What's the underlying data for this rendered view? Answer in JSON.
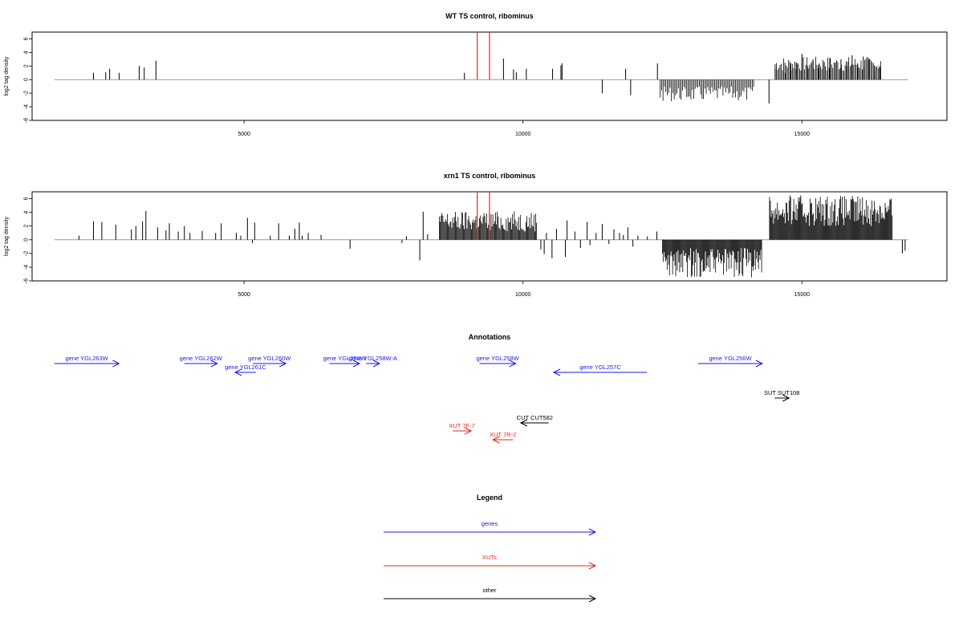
{
  "chart_data": [
    {
      "type": "bar",
      "title": "WT TS control, ribominus",
      "ylabel": "log2 tag density",
      "xlim": [
        1200,
        17600
      ],
      "ylim": [
        -6,
        7
      ],
      "x_ticks": [
        5000,
        10000,
        15000
      ],
      "y_ticks": [
        -6,
        -4,
        -2,
        0,
        2,
        4,
        6
      ],
      "baseline_range": [
        1600,
        16900
      ],
      "series": [
        {
          "color": "#000000",
          "x": [
            2300,
            2520,
            2590,
            2760,
            3120,
            3210,
            3420,
            8950,
            9650,
            9830,
            9880,
            10060,
            10530,
            10680,
            10700,
            11420,
            11840,
            11930,
            12410,
            14410,
            14520,
            14700,
            14800,
            14900,
            15000,
            15100,
            15200,
            15300,
            15400,
            15500,
            15600,
            15700,
            15800,
            15900,
            16000,
            16100,
            16200,
            16300,
            16400
          ],
          "values": [
            1.0,
            1.1,
            1.6,
            1.0,
            2.0,
            1.8,
            2.8,
            1.0,
            3.1,
            1.5,
            1.1,
            1.6,
            1.6,
            2.1,
            2.4,
            -2.0,
            1.6,
            -2.3,
            2.4,
            -3.5,
            1.6,
            1.0,
            2.4,
            2.5,
            3.8,
            2.0,
            3.0,
            2.2,
            2.6,
            3.2,
            2.5,
            3.0,
            2.0,
            3.6,
            2.4,
            3.4,
            2.9,
            2.1,
            1.8
          ]
        },
        {
          "color": "#e8251b",
          "x": [
            9180,
            9400
          ],
          "values": [
            6.9,
            6.9
          ]
        }
      ],
      "dense_regions": [
        {
          "x_range": [
            14520,
            16420
          ],
          "step": 22,
          "min": 1.2,
          "max": 3.4,
          "sign": 1
        },
        {
          "x_range": [
            12460,
            14140
          ],
          "step": 25,
          "min": 1.0,
          "max": 3.2,
          "sign": -1
        }
      ]
    },
    {
      "type": "bar",
      "title": "xrn1 TS control, ribominus",
      "ylabel": "log2 tag density",
      "xlim": [
        1200,
        17600
      ],
      "ylim": [
        -6,
        7
      ],
      "x_ticks": [
        5000,
        10000,
        15000
      ],
      "y_ticks": [
        -6,
        -4,
        -2,
        0,
        2,
        4,
        6
      ],
      "baseline_range": [
        1600,
        16900
      ],
      "series": [
        {
          "color": "#000000",
          "x": [
            2040,
            2300,
            2450,
            2700,
            2980,
            3060,
            3180,
            3240,
            3450,
            3600,
            3660,
            3820,
            3930,
            4030,
            4250,
            4490,
            4590,
            4860,
            4940,
            5060,
            5150,
            5190,
            5470,
            5620,
            5810,
            5910,
            5990,
            6040,
            6150,
            6380,
            6900,
            7830,
            7910,
            8150,
            8210,
            8290,
            10320,
            10380,
            10420,
            10520,
            10600,
            10760,
            10790,
            10930,
            11030,
            11150,
            11200,
            11310,
            11420,
            11540,
            11630,
            11730,
            11800,
            11880,
            11970,
            12060,
            12230,
            12400,
            16800,
            16850
          ],
          "values": [
            0.6,
            2.7,
            2.6,
            2.2,
            1.5,
            2.0,
            2.7,
            4.2,
            1.8,
            1.4,
            2.4,
            1.2,
            2.0,
            1.0,
            1.3,
            1.0,
            2.4,
            1.0,
            0.6,
            3.2,
            -0.5,
            2.5,
            0.6,
            2.4,
            0.6,
            1.6,
            2.5,
            0.6,
            1.0,
            0.7,
            -1.3,
            -0.5,
            0.5,
            -3.0,
            4.1,
            0.8,
            -1.4,
            -2.1,
            1.0,
            -2.7,
            1.6,
            -2.5,
            2.8,
            1.2,
            -1.2,
            2.6,
            -0.8,
            1.0,
            2.3,
            -0.6,
            1.5,
            1.0,
            0.7,
            1.8,
            -1.0,
            0.6,
            0.5,
            1.2,
            -2.0,
            -1.6
          ]
        },
        {
          "color": "#e8251b",
          "x": [
            9180,
            9400
          ],
          "values": [
            6.9,
            6.9
          ]
        }
      ],
      "dense_regions": [
        {
          "x_range": [
            8500,
            10250
          ],
          "step": 16,
          "min": 1.2,
          "max": 4.2,
          "sign": 1
        },
        {
          "x_range": [
            12500,
            14280
          ],
          "step": 14,
          "min": 1.2,
          "max": 5.5,
          "sign": -1
        },
        {
          "x_range": [
            14420,
            16620
          ],
          "step": 14,
          "min": 2.0,
          "max": 6.5,
          "sign": 1
        }
      ]
    }
  ],
  "annotations": {
    "title": "Annotations",
    "features": [
      {
        "label": "gene YGL263W",
        "category": "genes",
        "start": 1600,
        "end": 2760,
        "dir": "right",
        "row": 0
      },
      {
        "label": "gene YGL262W",
        "category": "genes",
        "start": 3930,
        "end": 4520,
        "dir": "right",
        "row": 0
      },
      {
        "label": "gene YGL261C",
        "category": "genes",
        "start": 4840,
        "end": 5210,
        "dir": "left",
        "row": 1
      },
      {
        "label": "gene YGL260W",
        "category": "genes",
        "start": 5160,
        "end": 5750,
        "dir": "right",
        "row": 0
      },
      {
        "label": "gene YGL258W",
        "category": "genes",
        "start": 6530,
        "end": 7070,
        "dir": "right",
        "row": 0
      },
      {
        "label": "gene YGL258W-A",
        "category": "genes",
        "start": 7190,
        "end": 7430,
        "dir": "right",
        "row": 0
      },
      {
        "label": "gene YGL258W",
        "category": "genes",
        "start": 9220,
        "end": 9870,
        "dir": "right",
        "row": 0
      },
      {
        "label": "gene YGL257C",
        "category": "genes",
        "start": 10550,
        "end": 12220,
        "dir": "left",
        "row": 1
      },
      {
        "label": "gene YGL256W",
        "category": "genes",
        "start": 13140,
        "end": 14290,
        "dir": "right",
        "row": 0
      },
      {
        "label": "SUT SUT108",
        "category": "other",
        "start": 14510,
        "end": 14770,
        "dir": "right",
        "row": 2
      },
      {
        "label": "CUT CUT582",
        "category": "other",
        "start": 9960,
        "end": 10460,
        "dir": "left",
        "row": 3
      },
      {
        "label": "XUT 7F-7",
        "category": "XUTs",
        "start": 8740,
        "end": 9070,
        "dir": "right",
        "row": 4
      },
      {
        "label": "XUT 7R-2",
        "category": "XUTs",
        "start": 9460,
        "end": 9820,
        "dir": "left",
        "row": 5
      }
    ]
  },
  "legend": {
    "title": "Legend",
    "items": [
      {
        "label": "genes",
        "color": "#1a1ae6"
      },
      {
        "label": "XUTs",
        "color": "#e8251b"
      },
      {
        "label": "other",
        "color": "#000000"
      }
    ]
  }
}
